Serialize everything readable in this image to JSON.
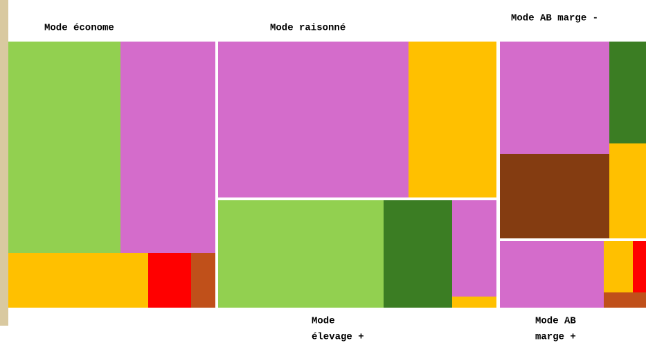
{
  "labels": [
    {
      "lines": [
        "Mode économe"
      ]
    },
    {
      "lines": [
        "Mode raisonné"
      ]
    },
    {
      "lines": [
        "Mode AB marge -"
      ]
    },
    {
      "lines": [
        "Mode",
        "élevage +"
      ]
    },
    {
      "lines": [
        "Mode AB",
        "marge +"
      ]
    }
  ]
}
